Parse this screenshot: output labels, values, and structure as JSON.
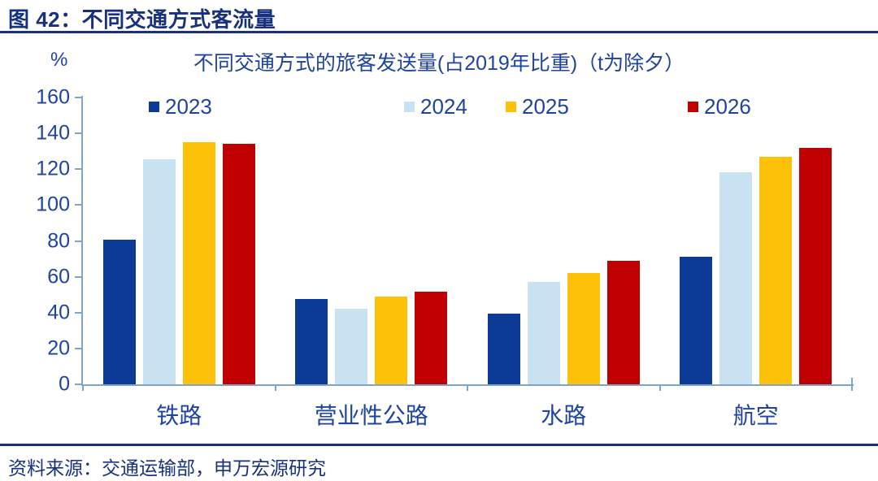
{
  "figure": {
    "header_title": "图 42：不同交通方式客流量",
    "source": "资料来源：交通运输部，申万宏源研究"
  },
  "chart_data": {
    "type": "bar",
    "title": "不同交通方式的旅客发送量(占2019年比重)（t为除夕）",
    "y_unit_label": "%",
    "xlabel": "",
    "ylabel": "%",
    "categories": [
      "铁路",
      "营业性公路",
      "水路",
      "航空"
    ],
    "series": [
      {
        "name": "2023",
        "color": "#0B3B96",
        "values": [
          80.5,
          47.5,
          39.5,
          71
        ]
      },
      {
        "name": "2024",
        "color": "#C9E2F2",
        "values": [
          125.5,
          42,
          57,
          118.5
        ]
      },
      {
        "name": "2025",
        "color": "#FDC109",
        "values": [
          135,
          49,
          62,
          127
        ]
      },
      {
        "name": "2026",
        "color": "#C00000",
        "values": [
          134,
          51.5,
          69,
          132
        ]
      }
    ],
    "ylim": [
      0,
      160
    ],
    "ytick_step": 20,
    "yticks": [
      0,
      20,
      40,
      60,
      80,
      100,
      120,
      140,
      160
    ],
    "grid": false,
    "legend_position": "top"
  },
  "colors": {
    "header_navy": "#17317E",
    "chart_text_blue": "#1E43A0",
    "axis_steel_blue": "#7FA6C6",
    "background": "#FFFFFF"
  }
}
